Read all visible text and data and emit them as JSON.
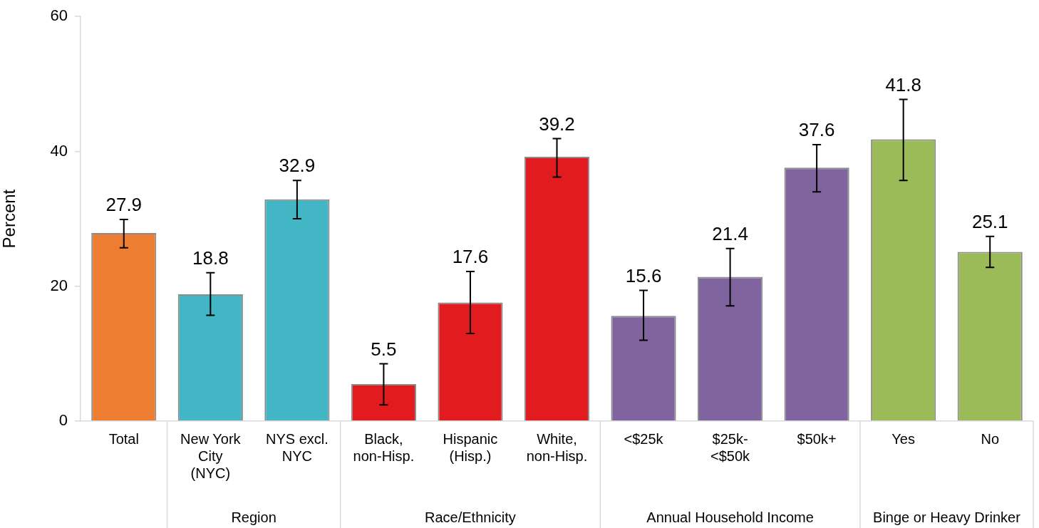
{
  "chart_data": {
    "type": "bar",
    "categories": [
      "Total",
      "New York City (NYC)",
      "NYS excl. NYC",
      "Black, non-Hisp.",
      "Hispanic (Hisp.)",
      "White, non-Hisp.",
      "<$25k",
      "$25k-<$50k",
      "$50k+",
      "Yes",
      "No"
    ],
    "values": [
      27.9,
      18.8,
      32.9,
      5.5,
      17.6,
      39.2,
      15.6,
      21.4,
      37.6,
      41.8,
      25.1
    ],
    "colors": [
      "#ed7d31",
      "#42b6c4",
      "#42b6c4",
      "#e11b1e",
      "#e11b1e",
      "#e11b1e",
      "#8064a0",
      "#8064a0",
      "#8064a0",
      "#9bbb59",
      "#9bbb59"
    ],
    "errors": [
      [
        25.7,
        29.9
      ],
      [
        15.7,
        22.0
      ],
      [
        30.0,
        35.7
      ],
      [
        2.4,
        8.5
      ],
      [
        13.0,
        22.2
      ],
      [
        36.2,
        41.9
      ],
      [
        12.0,
        19.4
      ],
      [
        17.1,
        25.6
      ],
      [
        34.0,
        41.0
      ],
      [
        35.7,
        47.7
      ],
      [
        22.8,
        27.4
      ]
    ],
    "ylabel": "Percent",
    "ylim": [
      0,
      60
    ],
    "yticks": [
      0,
      20,
      40,
      60
    ],
    "grid": false,
    "legend": false,
    "data_labels": true,
    "annotations": [
      "Region",
      "Race/Ethnicity",
      "Annual Household Income",
      "Binge or Heavy Drinker"
    ]
  }
}
